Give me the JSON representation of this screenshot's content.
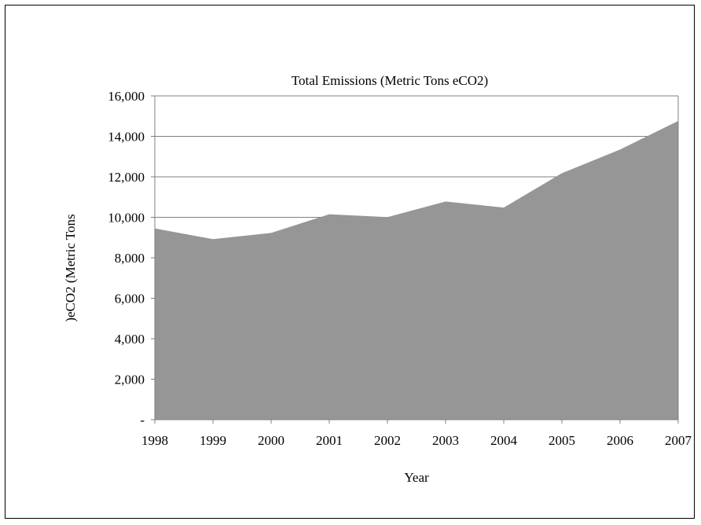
{
  "chart_data": {
    "type": "area",
    "title": "Total Emissions (Metric Tons eCO2)",
    "xlabel": "Year",
    "ylabel": ")eCO2 (Metric Tons",
    "categories": [
      "1998",
      "1999",
      "2000",
      "2001",
      "2002",
      "2003",
      "2004",
      "2005",
      "2006",
      "2007"
    ],
    "values": [
      9450,
      8920,
      9230,
      10150,
      10010,
      10780,
      10480,
      12180,
      13350,
      14760
    ],
    "ylim": [
      0,
      16000
    ],
    "yticks": [
      0,
      2000,
      4000,
      6000,
      8000,
      10000,
      12000,
      14000,
      16000
    ],
    "ytick_labels": [
      "-",
      "2,000",
      "4,000",
      "6,000",
      "8,000",
      "10,000",
      "12,000",
      "14,000",
      "16,000"
    ],
    "grid": true,
    "fill_color": "#969696",
    "grid_color": "#808080"
  }
}
